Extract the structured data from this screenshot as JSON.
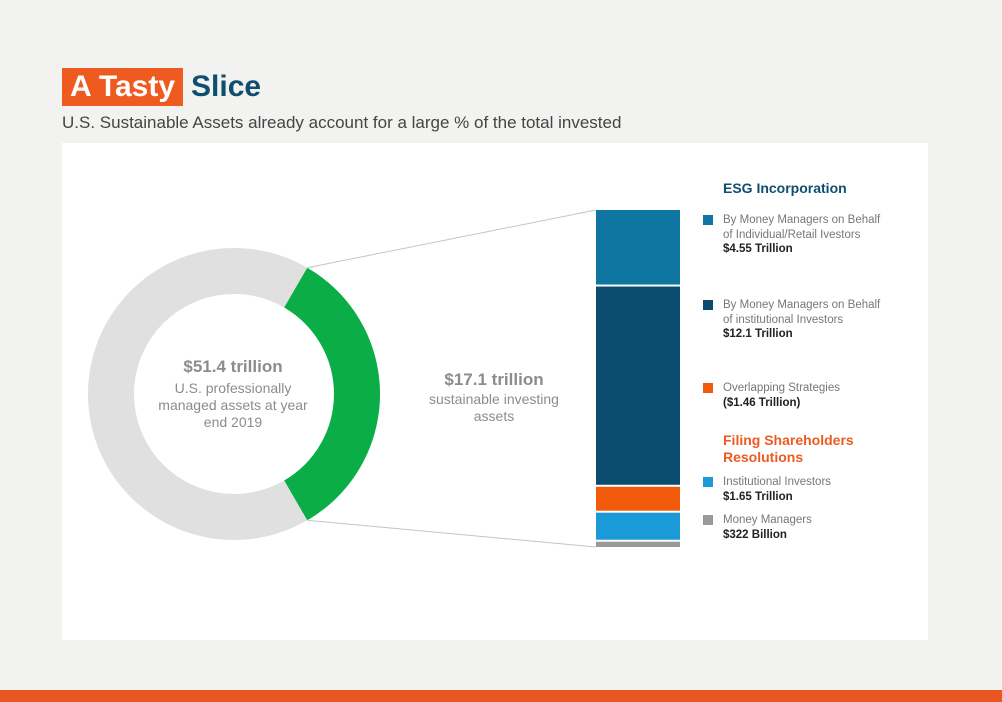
{
  "header": {
    "title_highlight": "A Tasty",
    "title_rest": "Slice",
    "subtitle": "U.S. Sustainable Assets already account for a large % of the total invested"
  },
  "donut": {
    "total_value": "$51.4 trillion",
    "total_label": "U.S. professionally managed assets at year end 2019"
  },
  "breakout": {
    "value": "$17.1 trillion",
    "label": "sustainable investing assets"
  },
  "legend": {
    "group1_title": "ESG Incorporation",
    "group2_title": "Filing Shareholders Resolutions",
    "items": [
      {
        "label": "By Money Managers on Behalf of Individual/Retail Ivestors",
        "value": "$4.55 Trillion",
        "color": "#0e76a0"
      },
      {
        "label": "By Money Managers on Behalf of institutional Investors",
        "value": "$12.1 Trillion",
        "color": "#0b4c6e"
      },
      {
        "label": "Overlapping Strategies",
        "value": "($1.46 Trillion)",
        "color": "#f05a0a"
      },
      {
        "label": "Institutional Investors",
        "value": "$1.65 Trillion",
        "color": "#1a9ad6"
      },
      {
        "label": "Money Managers",
        "value": "$322 Billion",
        "color": "#9a9a9a"
      }
    ]
  },
  "colors": {
    "donut_rest": "#e0e0e0",
    "donut_slice": "#0aad46",
    "title_orange": "#ee5a1f",
    "title_blue": "#0f4e6e"
  },
  "chart_data": [
    {
      "type": "pie",
      "categories": [
        "U.S. professionally managed assets",
        "sustainable investing assets"
      ],
      "values": [
        51.4,
        17.1
      ]
    },
    {
      "type": "bar",
      "categories": [
        "By Money Managers on Behalf of Individual/Retail Ivestors",
        "By Money Managers on Behalf of institutional Investors",
        "Overlapping Strategies",
        "Institutional Investors",
        "Money Managers"
      ],
      "values": [
        4.55,
        12.1,
        1.46,
        1.65,
        0.322
      ]
    }
  ]
}
